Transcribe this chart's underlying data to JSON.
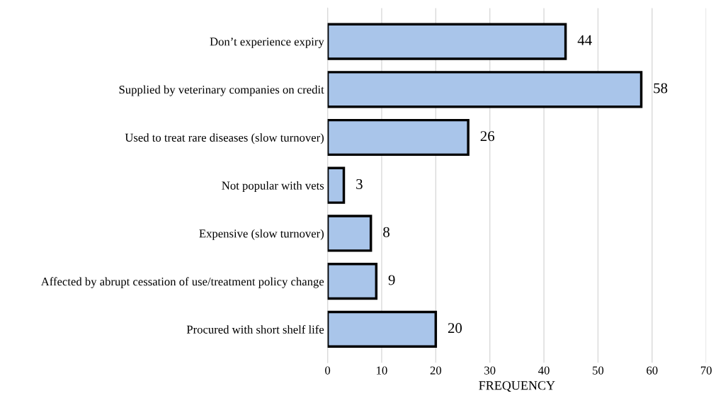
{
  "chart_data": {
    "type": "bar",
    "orientation": "horizontal",
    "xlabel": "FREQUENCY",
    "categories": [
      "Don’t experience expiry",
      "Supplied by veterinary companies on credit",
      "Used to treat rare diseases (slow turnover)",
      "Not popular with vets",
      "Expensive (slow turnover)",
      "Affected by abrupt cessation of use/treatment policy change",
      "Procured with short shelf life"
    ],
    "values": [
      44,
      58,
      26,
      3,
      8,
      9,
      20
    ],
    "color": "#a9c5ea",
    "xlim": [
      0,
      70
    ],
    "xticks": [
      0,
      10,
      20,
      30,
      40,
      50,
      60,
      70
    ],
    "grid": "x",
    "data_labels": true
  }
}
